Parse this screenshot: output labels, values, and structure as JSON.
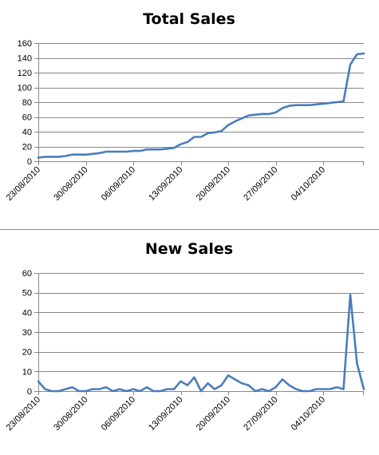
{
  "colors": {
    "series": "#4a7ebb",
    "grid": "#888888",
    "text": "#000000"
  },
  "chart_data": [
    {
      "type": "line",
      "title": "Total Sales",
      "xlabel": "",
      "ylabel": "",
      "ylim": [
        0,
        160
      ],
      "yticks": [
        0,
        20,
        40,
        60,
        80,
        100,
        120,
        140,
        160
      ],
      "xlim": [
        "2010-08-23",
        "2010-10-10"
      ],
      "x_tick_labels": [
        "23/08/2010",
        "30/08/2010",
        "06/09/2010",
        "13/09/2010",
        "20/09/2010",
        "27/09/2010",
        "04/10/2010"
      ],
      "x_tick_dates": [
        "2010-08-23",
        "2010-08-30",
        "2010-09-06",
        "2010-09-13",
        "2010-09-20",
        "2010-09-27",
        "2010-10-04"
      ],
      "grid": "horizontal",
      "series": [
        {
          "x": [
            "2010-08-23",
            "2010-08-24",
            "2010-08-25",
            "2010-08-26",
            "2010-08-27",
            "2010-08-28",
            "2010-08-29",
            "2010-08-30",
            "2010-08-31",
            "2010-09-01",
            "2010-09-02",
            "2010-09-03",
            "2010-09-04",
            "2010-09-05",
            "2010-09-06",
            "2010-09-07",
            "2010-09-08",
            "2010-09-09",
            "2010-09-10",
            "2010-09-11",
            "2010-09-12",
            "2010-09-13",
            "2010-09-14",
            "2010-09-15",
            "2010-09-16",
            "2010-09-17",
            "2010-09-18",
            "2010-09-19",
            "2010-09-20",
            "2010-09-21",
            "2010-09-22",
            "2010-09-23",
            "2010-09-24",
            "2010-09-25",
            "2010-09-26",
            "2010-09-27",
            "2010-09-28",
            "2010-09-29",
            "2010-09-30",
            "2010-10-01",
            "2010-10-02",
            "2010-10-03",
            "2010-10-04",
            "2010-10-05",
            "2010-10-06",
            "2010-10-07",
            "2010-10-08",
            "2010-10-09",
            "2010-10-10"
          ],
          "values": [
            5,
            6,
            6,
            6,
            7,
            9,
            9,
            9,
            10,
            11,
            13,
            13,
            13,
            13,
            14,
            14,
            16,
            16,
            16,
            17,
            18,
            23,
            26,
            33,
            33,
            38,
            39,
            41,
            49,
            54,
            58,
            62,
            63,
            64,
            64,
            66,
            72,
            75,
            76,
            76,
            76,
            77,
            78,
            79,
            80,
            81,
            131,
            145,
            146
          ]
        }
      ]
    },
    {
      "type": "line",
      "title": "New Sales",
      "xlabel": "",
      "ylabel": "",
      "ylim": [
        0,
        60
      ],
      "yticks": [
        0,
        10,
        20,
        30,
        40,
        50,
        60
      ],
      "xlim": [
        "2010-08-23",
        "2010-10-10"
      ],
      "x_tick_labels": [
        "23/08/2010",
        "30/08/2010",
        "06/09/2010",
        "13/09/2010",
        "20/09/2010",
        "27/09/2010",
        "04/10/2010"
      ],
      "x_tick_dates": [
        "2010-08-23",
        "2010-08-30",
        "2010-09-06",
        "2010-09-13",
        "2010-09-20",
        "2010-09-27",
        "2010-10-04"
      ],
      "grid": "horizontal",
      "series": [
        {
          "x": [
            "2010-08-23",
            "2010-08-24",
            "2010-08-25",
            "2010-08-26",
            "2010-08-27",
            "2010-08-28",
            "2010-08-29",
            "2010-08-30",
            "2010-08-31",
            "2010-09-01",
            "2010-09-02",
            "2010-09-03",
            "2010-09-04",
            "2010-09-05",
            "2010-09-06",
            "2010-09-07",
            "2010-09-08",
            "2010-09-09",
            "2010-09-10",
            "2010-09-11",
            "2010-09-12",
            "2010-09-13",
            "2010-09-14",
            "2010-09-15",
            "2010-09-16",
            "2010-09-17",
            "2010-09-18",
            "2010-09-19",
            "2010-09-20",
            "2010-09-21",
            "2010-09-22",
            "2010-09-23",
            "2010-09-24",
            "2010-09-25",
            "2010-09-26",
            "2010-09-27",
            "2010-09-28",
            "2010-09-29",
            "2010-09-30",
            "2010-10-01",
            "2010-10-02",
            "2010-10-03",
            "2010-10-04",
            "2010-10-05",
            "2010-10-06",
            "2010-10-07",
            "2010-10-08",
            "2010-10-09",
            "2010-10-10"
          ],
          "values": [
            5,
            1,
            0,
            0,
            1,
            2,
            0,
            0,
            1,
            1,
            2,
            0,
            1,
            0,
            1,
            0,
            2,
            0,
            0,
            1,
            1,
            5,
            3,
            7,
            0,
            4,
            1,
            3,
            8,
            6,
            4,
            3,
            0,
            1,
            0,
            2,
            6,
            3,
            1,
            0,
            0,
            1,
            1,
            1,
            2,
            1,
            49,
            14,
            1
          ]
        }
      ]
    }
  ]
}
